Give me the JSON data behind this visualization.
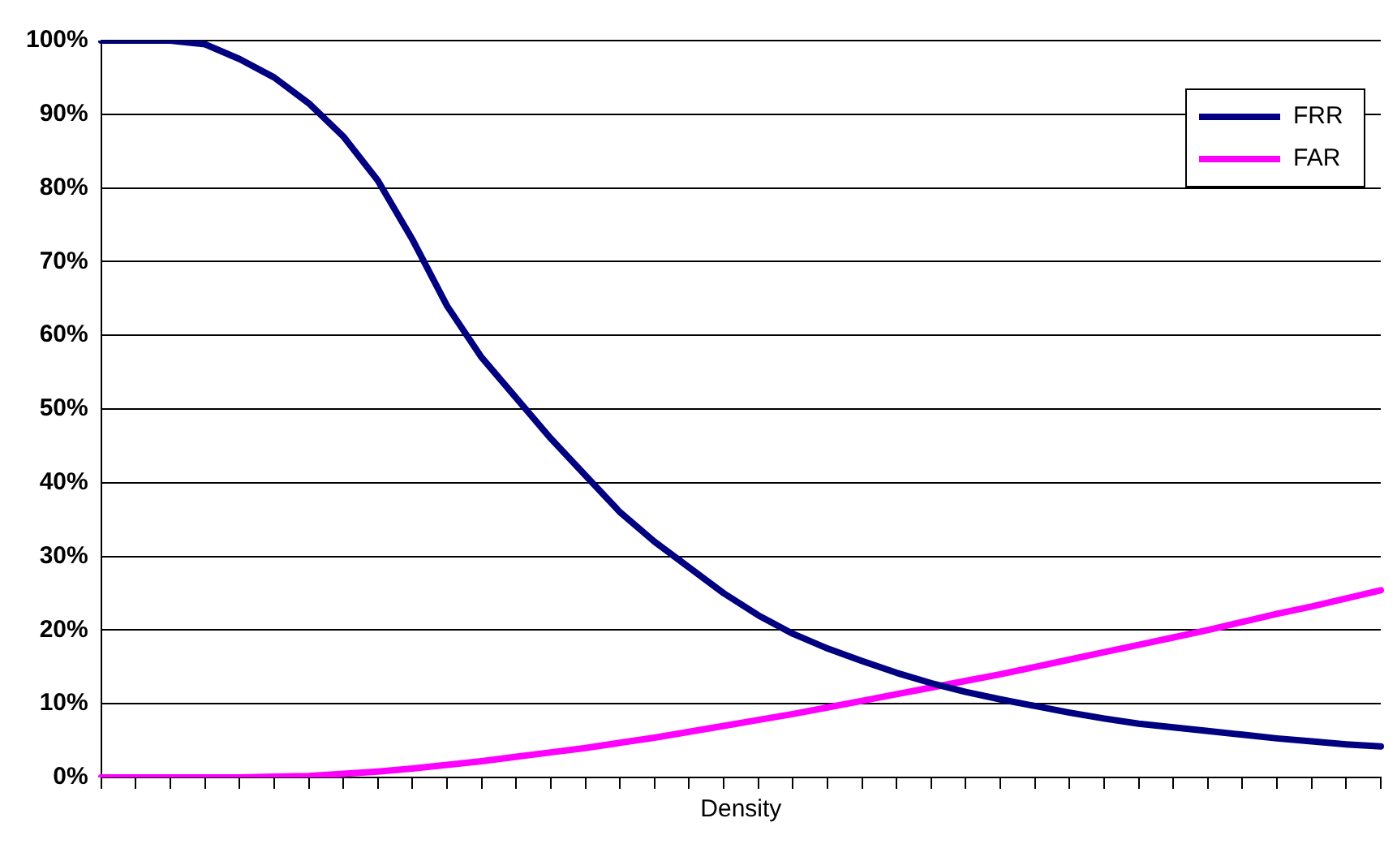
{
  "chart_data": {
    "type": "line",
    "xlabel": "Density",
    "categories": [
      null,
      null,
      null,
      null,
      null,
      null,
      null,
      null,
      null,
      null,
      null,
      null,
      null,
      null,
      null,
      null,
      null,
      null,
      null,
      null,
      null,
      null,
      null,
      null,
      null,
      null,
      null,
      null,
      null,
      null,
      null,
      null,
      null,
      null,
      null,
      null,
      null,
      null
    ],
    "series": [
      {
        "name": "FRR",
        "color": "#000080",
        "values": [
          100,
          100,
          100,
          99.5,
          97.5,
          95,
          91.5,
          87,
          81,
          73,
          64,
          57,
          51.5,
          46,
          41,
          36,
          32,
          28.5,
          25,
          22,
          19.5,
          17.5,
          15.8,
          14.2,
          12.8,
          11.6,
          10.6,
          9.7,
          8.8,
          8,
          7.3,
          6.8,
          6.3,
          5.8,
          5.3,
          4.9,
          4.5,
          4.2
        ]
      },
      {
        "name": "FAR",
        "color": "#ff00ff",
        "values": [
          0,
          0,
          0,
          0,
          0,
          0.1,
          0.2,
          0.5,
          0.8,
          1.2,
          1.7,
          2.2,
          2.8,
          3.4,
          4,
          4.7,
          5.4,
          6.2,
          7,
          7.8,
          8.6,
          9.5,
          10.4,
          11.3,
          12.2,
          13.1,
          14,
          15,
          16,
          17,
          18,
          19,
          20,
          21.1,
          22.2,
          23.2,
          24.3,
          25.4
        ]
      }
    ],
    "ylim": [
      0,
      100
    ],
    "yticks": [
      {
        "value": 0,
        "label": "0%"
      },
      {
        "value": 10,
        "label": "10%"
      },
      {
        "value": 20,
        "label": "20%"
      },
      {
        "value": 30,
        "label": "30%"
      },
      {
        "value": 40,
        "label": "40%"
      },
      {
        "value": 50,
        "label": "50%"
      },
      {
        "value": 60,
        "label": "60%"
      },
      {
        "value": 70,
        "label": "70%"
      },
      {
        "value": 80,
        "label": "80%"
      },
      {
        "value": 90,
        "label": "90%"
      },
      {
        "value": 100,
        "label": "100%"
      }
    ],
    "grid": "y",
    "legend": "top right",
    "tick_labels": "y",
    "marker": "none",
    "line_style": "solid"
  }
}
